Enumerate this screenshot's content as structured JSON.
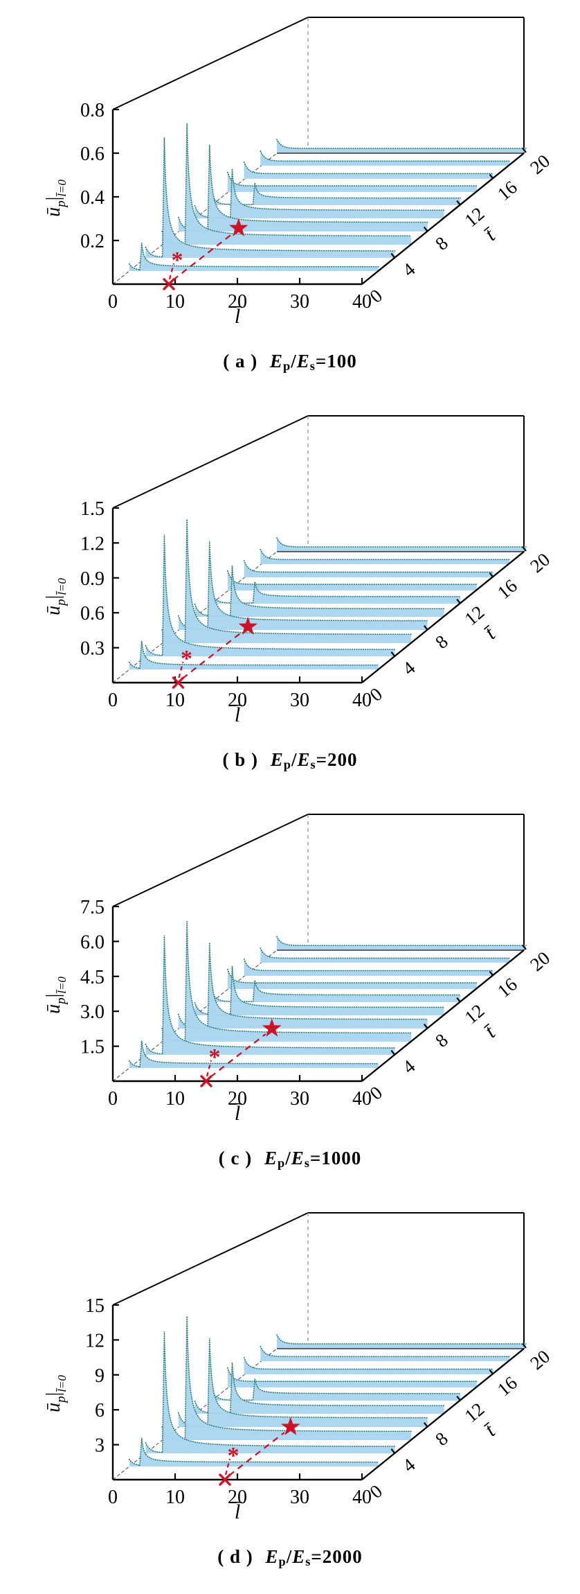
{
  "colors": {
    "fill": "#a9d5f0",
    "curve_line": "#2e7d72",
    "red": "#cc1428",
    "axis": "#000000",
    "hidden_edge": "#888888",
    "floor_edge": "#555555"
  },
  "common": {
    "E": "E",
    "p": "p",
    "s": "s",
    "slash": "/",
    "eq": "=",
    "asterisk": "*",
    "xlabel": "l̄",
    "tlabel": "t̄",
    "ylabel_u": "ū",
    "ylabel_p": "p",
    "ylabel_bar": "|",
    "ylabel_cond": "l̄=0"
  },
  "panels": [
    {
      "caption_label": "( a )",
      "ratio": "100"
    },
    {
      "caption_label": "( b )",
      "ratio": "200"
    },
    {
      "caption_label": "( c )",
      "ratio": "1000"
    },
    {
      "caption_label": "( d )",
      "ratio": "2000"
    }
  ],
  "chart_data": [
    {
      "type": "line",
      "title": "(a) Ep/Es=100",
      "xlabel": "l̄",
      "tlabel": "t̄",
      "ylabel": "ūp|l̄=0",
      "xlim": [
        0,
        40
      ],
      "tlim": [
        0,
        20
      ],
      "ylim": [
        0,
        0.8
      ],
      "xticks": [
        0,
        10,
        20,
        30,
        40
      ],
      "xticklabels": [
        "0",
        "10",
        "20",
        "30",
        "40"
      ],
      "tticks": [
        0,
        4,
        8,
        12,
        16,
        20
      ],
      "tticklabels": [
        "0",
        "4",
        "8",
        "12",
        "16",
        "20"
      ],
      "yticks": [
        0.2,
        0.4,
        0.6,
        0.8
      ],
      "yticklabels": [
        "0.2",
        "0.4",
        "0.6",
        "0.8"
      ],
      "series": [
        {
          "t": 2,
          "spike_l": 2,
          "peak": 0.13,
          "plateau": 0.02
        },
        {
          "t": 4,
          "spike_l": 3,
          "peak": 0.58,
          "plateau": 0.032
        },
        {
          "t": 6,
          "spike_l": 4,
          "peak": 0.6,
          "plateau": 0.042
        },
        {
          "t": 8,
          "spike_l": 5,
          "peak": 0.44,
          "plateau": 0.046
        },
        {
          "t": 10,
          "spike_l": 6,
          "peak": 0.26,
          "plateau": 0.042
        },
        {
          "t": 12,
          "spike_l": 7,
          "peak": 0.12,
          "plateau": 0.038
        },
        {
          "t": 14,
          "spike_l": 0,
          "peak": 0,
          "plateau": 0.034
        },
        {
          "t": 16,
          "spike_l": 0,
          "peak": 0,
          "plateau": 0.03
        },
        {
          "t": 18,
          "spike_l": 0,
          "peak": 0,
          "plateau": 0.027
        },
        {
          "t": 20,
          "spike_l": 0,
          "peak": 0,
          "plateau": 0.025
        }
      ],
      "markers": {
        "cross_l": 9,
        "star_l": 9,
        "star_t": 8.5
      }
    },
    {
      "type": "line",
      "title": "(b) Ep/Es=200",
      "xlabel": "l̄",
      "tlabel": "t̄",
      "ylabel": "ūp|l̄=0",
      "xlim": [
        0,
        40
      ],
      "tlim": [
        0,
        20
      ],
      "ylim": [
        0,
        1.5
      ],
      "xticks": [
        0,
        10,
        20,
        30,
        40
      ],
      "xticklabels": [
        "0",
        "10",
        "20",
        "30",
        "40"
      ],
      "tticks": [
        0,
        4,
        8,
        12,
        16,
        20
      ],
      "tticklabels": [
        "0",
        "4",
        "8",
        "12",
        "16",
        "20"
      ],
      "yticks": [
        0.3,
        0.6,
        0.9,
        1.2,
        1.5
      ],
      "yticklabels": [
        "0.3",
        "0.6",
        "0.9",
        "1.2",
        "1.5"
      ],
      "series": [
        {
          "t": 2,
          "spike_l": 2,
          "peak": 0.25,
          "plateau": 0.038
        },
        {
          "t": 4,
          "spike_l": 3,
          "peak": 1.1,
          "plateau": 0.06
        },
        {
          "t": 6,
          "spike_l": 4,
          "peak": 1.15,
          "plateau": 0.079
        },
        {
          "t": 8,
          "spike_l": 5,
          "peak": 0.85,
          "plateau": 0.086
        },
        {
          "t": 10,
          "spike_l": 6,
          "peak": 0.5,
          "plateau": 0.079
        },
        {
          "t": 12,
          "spike_l": 7,
          "peak": 0.22,
          "plateau": 0.071
        },
        {
          "t": 14,
          "spike_l": 0,
          "peak": 0,
          "plateau": 0.064
        },
        {
          "t": 16,
          "spike_l": 0,
          "peak": 0,
          "plateau": 0.056
        },
        {
          "t": 18,
          "spike_l": 0,
          "peak": 0,
          "plateau": 0.051
        },
        {
          "t": 20,
          "spike_l": 0,
          "peak": 0,
          "plateau": 0.047
        }
      ],
      "markers": {
        "cross_l": 10.5,
        "star_l": 10.5,
        "star_t": 8.5
      }
    },
    {
      "type": "line",
      "title": "(c) Ep/Es=1000",
      "xlabel": "l̄",
      "tlabel": "t̄",
      "ylabel": "ūp|l̄=0",
      "xlim": [
        0,
        40
      ],
      "tlim": [
        0,
        20
      ],
      "ylim": [
        0,
        7.5
      ],
      "xticks": [
        0,
        10,
        20,
        30,
        40
      ],
      "xticklabels": [
        "0",
        "10",
        "20",
        "30",
        "40"
      ],
      "tticks": [
        0,
        4,
        8,
        12,
        16,
        20
      ],
      "tticklabels": [
        "0",
        "4",
        "8",
        "12",
        "16",
        "20"
      ],
      "yticks": [
        1.5,
        3.0,
        4.5,
        6.0,
        7.5
      ],
      "yticklabels": [
        "1.5",
        "3.0",
        "4.5",
        "6.0",
        "7.5"
      ],
      "series": [
        {
          "t": 2,
          "spike_l": 2,
          "peak": 1.2,
          "plateau": 0.19
        },
        {
          "t": 4,
          "spike_l": 3,
          "peak": 5.4,
          "plateau": 0.3
        },
        {
          "t": 6,
          "spike_l": 4,
          "peak": 5.6,
          "plateau": 0.39
        },
        {
          "t": 8,
          "spike_l": 5,
          "peak": 4.1,
          "plateau": 0.43
        },
        {
          "t": 10,
          "spike_l": 6,
          "peak": 2.4,
          "plateau": 0.39
        },
        {
          "t": 12,
          "spike_l": 7,
          "peak": 1.1,
          "plateau": 0.36
        },
        {
          "t": 14,
          "spike_l": 0,
          "peak": 0,
          "plateau": 0.32
        },
        {
          "t": 16,
          "spike_l": 0,
          "peak": 0,
          "plateau": 0.28
        },
        {
          "t": 18,
          "spike_l": 0,
          "peak": 0,
          "plateau": 0.25
        },
        {
          "t": 20,
          "spike_l": 0,
          "peak": 0,
          "plateau": 0.23
        }
      ],
      "markers": {
        "cross_l": 15,
        "star_l": 15,
        "star_t": 8
      }
    },
    {
      "type": "line",
      "title": "(d) Ep/Es=2000",
      "xlabel": "l̄",
      "tlabel": "t̄",
      "ylabel": "ūp|l̄=0",
      "xlim": [
        0,
        40
      ],
      "tlim": [
        0,
        20
      ],
      "ylim": [
        0,
        15
      ],
      "xticks": [
        0,
        10,
        20,
        30,
        40
      ],
      "xticklabels": [
        "0",
        "10",
        "20",
        "30",
        "40"
      ],
      "tticks": [
        0,
        4,
        8,
        12,
        16,
        20
      ],
      "tticklabels": [
        "0",
        "4",
        "8",
        "12",
        "16",
        "20"
      ],
      "yticks": [
        3,
        6,
        9,
        12,
        15
      ],
      "yticklabels": [
        "3",
        "6",
        "9",
        "12",
        "15"
      ],
      "series": [
        {
          "t": 2,
          "spike_l": 2,
          "peak": 2.5,
          "plateau": 0.38
        },
        {
          "t": 4,
          "spike_l": 3,
          "peak": 11,
          "plateau": 0.6
        },
        {
          "t": 6,
          "spike_l": 4,
          "peak": 11.5,
          "plateau": 0.79
        },
        {
          "t": 8,
          "spike_l": 5,
          "peak": 8.5,
          "plateau": 0.86
        },
        {
          "t": 10,
          "spike_l": 6,
          "peak": 5,
          "plateau": 0.79
        },
        {
          "t": 12,
          "spike_l": 7,
          "peak": 2.2,
          "plateau": 0.71
        },
        {
          "t": 14,
          "spike_l": 0,
          "peak": 0,
          "plateau": 0.64
        },
        {
          "t": 16,
          "spike_l": 0,
          "peak": 0,
          "plateau": 0.56
        },
        {
          "t": 18,
          "spike_l": 0,
          "peak": 0,
          "plateau": 0.51
        },
        {
          "t": 20,
          "spike_l": 0,
          "peak": 0,
          "plateau": 0.47
        }
      ],
      "markers": {
        "cross_l": 18,
        "star_l": 18,
        "star_t": 8
      }
    }
  ]
}
